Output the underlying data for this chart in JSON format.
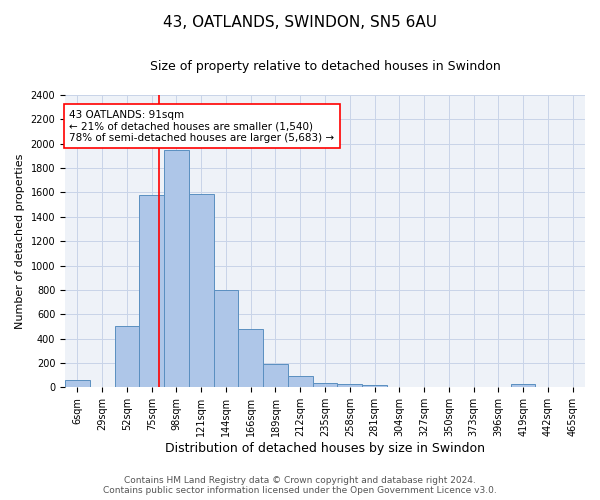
{
  "title": "43, OATLANDS, SWINDON, SN5 6AU",
  "subtitle": "Size of property relative to detached houses in Swindon",
  "xlabel": "Distribution of detached houses by size in Swindon",
  "ylabel": "Number of detached properties",
  "footer_line1": "Contains HM Land Registry data © Crown copyright and database right 2024.",
  "footer_line2": "Contains public sector information licensed under the Open Government Licence v3.0.",
  "bar_labels": [
    "6sqm",
    "29sqm",
    "52sqm",
    "75sqm",
    "98sqm",
    "121sqm",
    "144sqm",
    "166sqm",
    "189sqm",
    "212sqm",
    "235sqm",
    "258sqm",
    "281sqm",
    "304sqm",
    "327sqm",
    "350sqm",
    "373sqm",
    "396sqm",
    "419sqm",
    "442sqm",
    "465sqm"
  ],
  "bar_values": [
    60,
    0,
    500,
    1580,
    1950,
    1590,
    800,
    480,
    195,
    90,
    35,
    25,
    20,
    0,
    0,
    0,
    0,
    0,
    25,
    0,
    0
  ],
  "bar_color": "#aec6e8",
  "bar_edgecolor": "#5a8fc0",
  "bar_linewidth": 0.7,
  "grid_color": "#c8d4e8",
  "bg_color": "#eef2f8",
  "ylim": [
    0,
    2400
  ],
  "yticks": [
    0,
    200,
    400,
    600,
    800,
    1000,
    1200,
    1400,
    1600,
    1800,
    2000,
    2200,
    2400
  ],
  "property_label": "43 OATLANDS: 91sqm",
  "annotation_line1": "← 21% of detached houses are smaller (1,540)",
  "annotation_line2": "78% of semi-detached houses are larger (5,683) →",
  "vline_x_bar_idx": 3.78,
  "title_fontsize": 11,
  "subtitle_fontsize": 9,
  "axis_label_fontsize": 8,
  "tick_fontsize": 7,
  "annotation_fontsize": 7.5,
  "footer_fontsize": 6.5
}
